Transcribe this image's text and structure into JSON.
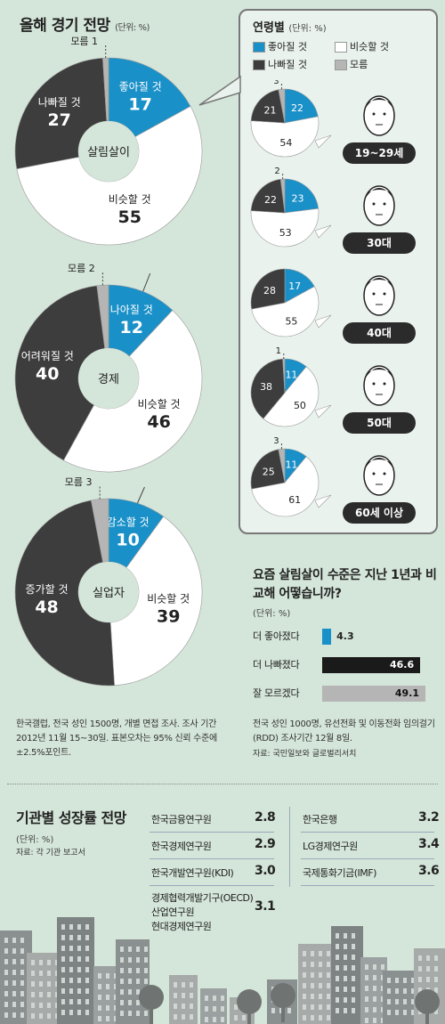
{
  "colors": {
    "bg": "#d4e5d9",
    "blue": "#1a90c8",
    "dark": "#3d3d3d",
    "white": "#ffffff",
    "gray": "#b5b5b5"
  },
  "main": {
    "title": "올해 경기 전망",
    "unit": "(단위: %)"
  },
  "source_note": "한국갤럽, 전국 성인 1500명, 개별 면접 조사. 조사 기간 2012년 11월 15~30일. 표본오차는 95% 신뢰 수준에 ±2.5%포인트.",
  "chart_data": [
    {
      "type": "pie",
      "center_label": "살림살이",
      "slices": [
        {
          "label": "좋아질 것",
          "value": 17,
          "color": "#1a90c8"
        },
        {
          "label": "비슷할 것",
          "value": 55,
          "color": "#ffffff"
        },
        {
          "label": "나빠질 것",
          "value": 27,
          "color": "#3d3d3d"
        },
        {
          "label": "모름",
          "value": 1,
          "color": "#b5b5b5"
        }
      ]
    },
    {
      "type": "pie",
      "center_label": "경제",
      "slices": [
        {
          "label": "나아질 것",
          "value": 12,
          "color": "#1a90c8"
        },
        {
          "label": "비슷할 것",
          "value": 46,
          "color": "#ffffff"
        },
        {
          "label": "어려워질 것",
          "value": 40,
          "color": "#3d3d3d"
        },
        {
          "label": "모름",
          "value": 2,
          "color": "#b5b5b5"
        }
      ]
    },
    {
      "type": "pie",
      "center_label": "실업자",
      "slices": [
        {
          "label": "감소할 것",
          "value": 10,
          "color": "#1a90c8"
        },
        {
          "label": "비슷할 것",
          "value": 39,
          "color": "#ffffff"
        },
        {
          "label": "증가할 것",
          "value": 48,
          "color": "#3d3d3d"
        },
        {
          "label": "모름",
          "value": 3,
          "color": "#b5b5b5"
        }
      ]
    },
    {
      "type": "pie",
      "title": "연령별",
      "unit": "(단위: %)",
      "legend": [
        {
          "label": "좋아질 것",
          "color": "#1a90c8"
        },
        {
          "label": "비슷할 것",
          "color": "#ffffff"
        },
        {
          "label": "나빠질 것",
          "color": "#3d3d3d"
        },
        {
          "label": "모름",
          "color": "#b5b5b5"
        }
      ],
      "groups": [
        {
          "label": "19~29세",
          "values": {
            "better": 22,
            "same": 54,
            "worse": 21,
            "unknown": 3
          }
        },
        {
          "label": "30대",
          "values": {
            "better": 23,
            "same": 53,
            "worse": 22,
            "unknown": 2
          }
        },
        {
          "label": "40대",
          "values": {
            "better": 17,
            "same": 55,
            "worse": 28,
            "unknown": 0
          }
        },
        {
          "label": "50대",
          "values": {
            "better": 11,
            "same": 50,
            "worse": 38,
            "unknown": 1
          }
        },
        {
          "label": "60세 이상",
          "values": {
            "better": 11,
            "same": 61,
            "worse": 25,
            "unknown": 3
          }
        }
      ]
    },
    {
      "type": "bar",
      "orientation": "horizontal",
      "title": "요즘 살림살이 수준은 지난 1년과 비교해 어떻습니까?",
      "unit": "(단위: %)",
      "categories": [
        "더 좋아졌다",
        "더 나빠졌다",
        "잘 모르겠다"
      ],
      "values": [
        4.3,
        46.6,
        49.1
      ],
      "colors": [
        "#1a90c8",
        "#1a1a1a",
        "#b5b5b5"
      ],
      "xlim": [
        0,
        50
      ],
      "note": "전국 성인 1000명, 유선전화 및 이동전화 임의걸기(RDD) 조사기간 12월 8일.",
      "source": "자료: 국민일보와 글로벌리서치"
    },
    {
      "type": "table",
      "title": "기관별 성장률 전망",
      "unit": "(단위: %)",
      "source": "자료: 각 기관 보고서",
      "rows": [
        {
          "org": "한국금융연구원",
          "value": "2.8"
        },
        {
          "org": "한국경제연구원",
          "value": "2.9"
        },
        {
          "org": "한국개발연구원(KDI)",
          "value": "3.0"
        },
        {
          "org": "경제협력개발기구(OECD)",
          "value": "3.1"
        },
        {
          "org": "산업연구원",
          "value": ""
        },
        {
          "org": "현대경제연구원",
          "value": ""
        },
        {
          "org": "한국은행",
          "value": "3.2"
        },
        {
          "org": "LG경제연구원",
          "value": "3.4"
        },
        {
          "org": "국제통화기금(IMF)",
          "value": "3.6"
        }
      ]
    }
  ]
}
